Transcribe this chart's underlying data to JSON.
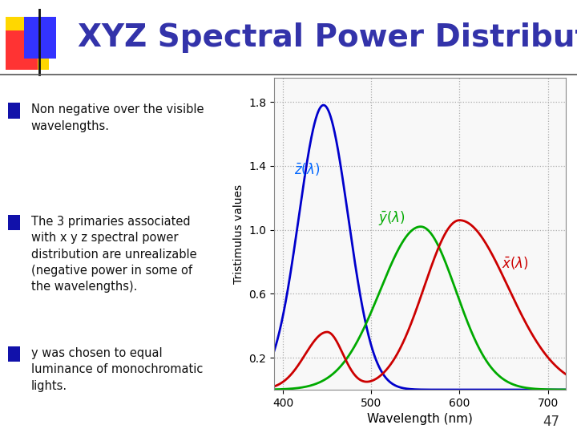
{
  "title": "XYZ Spectral Power Distribution",
  "title_color": "#3333AA",
  "title_fontsize": 28,
  "ylabel": "Tristimulus values",
  "xlabel": "Wavelength (nm)",
  "xlim": [
    390,
    720
  ],
  "ylim": [
    0,
    1.95
  ],
  "yticks": [
    0.2,
    0.6,
    1.0,
    1.4,
    1.8
  ],
  "xticks": [
    400,
    500,
    600,
    700
  ],
  "bg_color": "#FFFFFF",
  "plot_bg_color": "#F8F8F8",
  "grid_color": "#AAAAAA",
  "curve_z_color": "#0000CC",
  "curve_y_color": "#00AA00",
  "curve_x_color": "#CC0000",
  "bullet_color": "#1111AA",
  "text_color": "#111111",
  "slide_number": "47",
  "label_z_color": "#0066FF",
  "label_y_color": "#00AA00",
  "label_x_color": "#CC0000",
  "bullets": [
    "Non negative over the visible\nwavelengths.",
    "The 3 primaries associated\nwith x y z spectral power\ndistribution are unrealizable\n(negative power in some of\nthe wavelengths).",
    "y was chosen to equal\nluminance of monochromatic\nlights."
  ]
}
